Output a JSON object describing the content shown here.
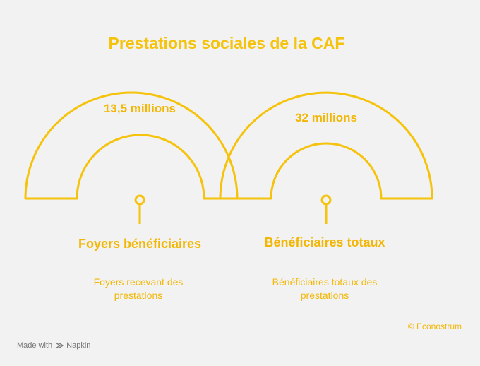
{
  "title": "Prestations sociales de la CAF",
  "colors": {
    "accent": "#f5c20c",
    "background": "#f2f2f2"
  },
  "items": [
    {
      "value": "13,5 millions",
      "label": "Foyers bénéficiaires",
      "description": "Foyers recevant des prestations"
    },
    {
      "value": "32 millions",
      "label": "Bénéficiaires totaux",
      "description": "Bénéficiaires totaux des prestations"
    }
  ],
  "credit": "© Econostrum",
  "footer": {
    "made_with": "Made with",
    "brand": "Napkin"
  }
}
